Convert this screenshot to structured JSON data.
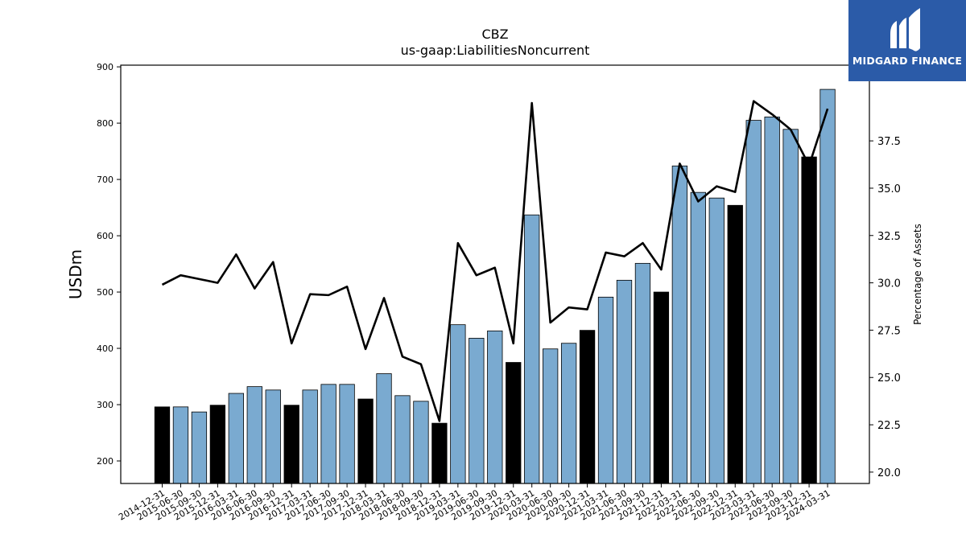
{
  "logo": {
    "text": "MIDGARD FINANCE",
    "icon": "midgard-m-icon",
    "background": "#2b5ba8"
  },
  "chart_data": {
    "type": "bar",
    "title": "CBZ",
    "subtitle": "us-gaap:LiabilitiesNoncurrent",
    "ylabel": "USDm",
    "y2label": "Percentage of Assets",
    "ylim": [
      160,
      903
    ],
    "y2lim": [
      19.4,
      41.5
    ],
    "yticks": [
      200,
      300,
      400,
      500,
      600,
      700,
      800,
      900
    ],
    "y2ticks": [
      20.0,
      22.5,
      25.0,
      27.5,
      30.0,
      32.5,
      35.0,
      37.5
    ],
    "categories": [
      "2014-12-31",
      "2015-06-30",
      "2015-09-30",
      "2015-12-31",
      "2016-03-31",
      "2016-06-30",
      "2016-09-30",
      "2016-12-31",
      "2017-03-31",
      "2017-06-30",
      "2017-09-30",
      "2017-12-31",
      "2018-03-31",
      "2018-06-30",
      "2018-09-30",
      "2018-12-31",
      "2019-03-31",
      "2019-06-30",
      "2019-09-30",
      "2019-12-31",
      "2020-03-31",
      "2020-06-30",
      "2020-09-30",
      "2020-12-31",
      "2021-03-31",
      "2021-06-30",
      "2021-09-30",
      "2021-12-31",
      "2022-03-31",
      "2022-06-30",
      "2022-09-30",
      "2022-12-31",
      "2023-03-31",
      "2023-06-30",
      "2023-09-30",
      "2023-12-31",
      "2024-03-31"
    ],
    "series": [
      {
        "type": "bar",
        "values": [
          296,
          296,
          287,
          299,
          320,
          332,
          326,
          299,
          326,
          336,
          336,
          310,
          355,
          316,
          306,
          267,
          442,
          418,
          431,
          375,
          637,
          399,
          409,
          432,
          491,
          521,
          551,
          500,
          724,
          677,
          667,
          654,
          805,
          811,
          789,
          740,
          860
        ],
        "year_end": [
          true,
          false,
          false,
          true,
          false,
          false,
          false,
          true,
          false,
          false,
          false,
          true,
          false,
          false,
          false,
          true,
          false,
          false,
          false,
          true,
          false,
          false,
          false,
          true,
          false,
          false,
          false,
          true,
          false,
          false,
          false,
          true,
          false,
          false,
          false,
          true,
          false
        ]
      },
      {
        "type": "line",
        "axis": "right",
        "values": [
          29.9,
          30.4,
          30.2,
          30.0,
          31.5,
          29.7,
          31.1,
          26.8,
          29.4,
          29.35,
          29.8,
          26.5,
          29.2,
          26.1,
          25.7,
          22.7,
          32.1,
          30.4,
          30.8,
          26.8,
          39.5,
          27.9,
          28.7,
          28.6,
          31.6,
          31.4,
          32.1,
          30.7,
          36.3,
          34.3,
          35.1,
          34.8,
          39.6,
          38.9,
          38.1,
          36.2,
          39.2
        ]
      }
    ],
    "colors": {
      "bar": "#7aaad0",
      "bar_year_end": "#000000",
      "line": "#000000"
    },
    "grid": false
  }
}
